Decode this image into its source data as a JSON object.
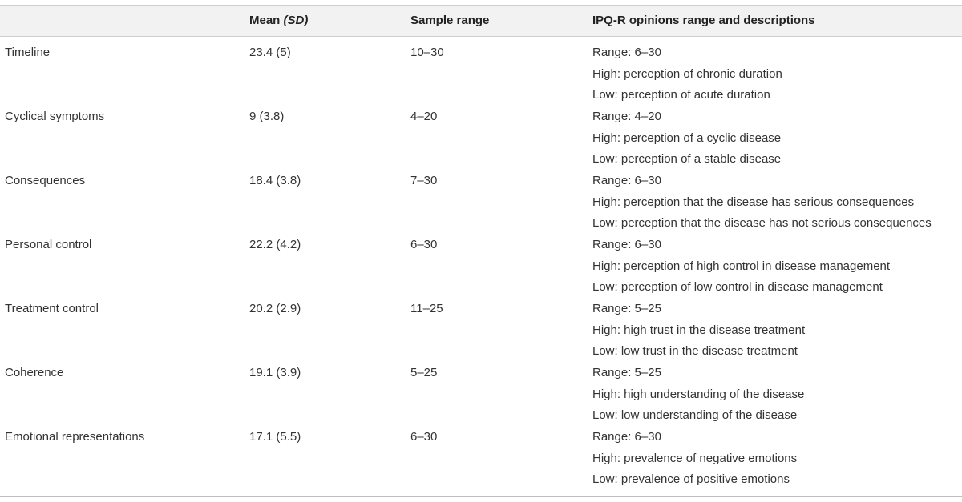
{
  "headers": {
    "col1": "",
    "col2_main": "Mean ",
    "col2_italic": "(SD)",
    "col3": "Sample range",
    "col4": "IPQ-R opinions range and descriptions"
  },
  "rows": [
    {
      "name": "Timeline",
      "mean": "23.4 (5)",
      "sample_range": "10–30",
      "desc": [
        "Range: 6–30",
        "High: perception of chronic duration",
        "Low: perception of acute duration"
      ]
    },
    {
      "name": "Cyclical symptoms",
      "mean": "9 (3.8)",
      "sample_range": "4–20",
      "desc": [
        "Range: 4–20",
        "High: perception of a cyclic disease",
        "Low: perception of a stable disease"
      ]
    },
    {
      "name": "Consequences",
      "mean": "18.4 (3.8)",
      "sample_range": "7–30",
      "desc": [
        "Range: 6–30",
        "High: perception that the disease has serious consequences",
        "Low: perception that the disease has not serious consequences"
      ]
    },
    {
      "name": "Personal control",
      "mean": "22.2 (4.2)",
      "sample_range": "6–30",
      "desc": [
        "Range: 6–30",
        "High: perception of high control in disease management",
        "Low: perception of low control in disease management"
      ]
    },
    {
      "name": "Treatment control",
      "mean": "20.2 (2.9)",
      "sample_range": "11–25",
      "desc": [
        "Range: 5–25",
        "High: high trust in the disease treatment",
        "Low: low trust in the disease treatment"
      ]
    },
    {
      "name": "Coherence",
      "mean": "19.1 (3.9)",
      "sample_range": "5–25",
      "desc": [
        "Range: 5–25",
        "High: high understanding of the disease",
        "Low: low understanding of the disease"
      ]
    },
    {
      "name": "Emotional representations",
      "mean": "17.1 (5.5)",
      "sample_range": "6–30",
      "desc": [
        "Range: 6–30",
        "High: prevalence of negative emotions",
        "Low: prevalence of positive emotions"
      ]
    }
  ]
}
